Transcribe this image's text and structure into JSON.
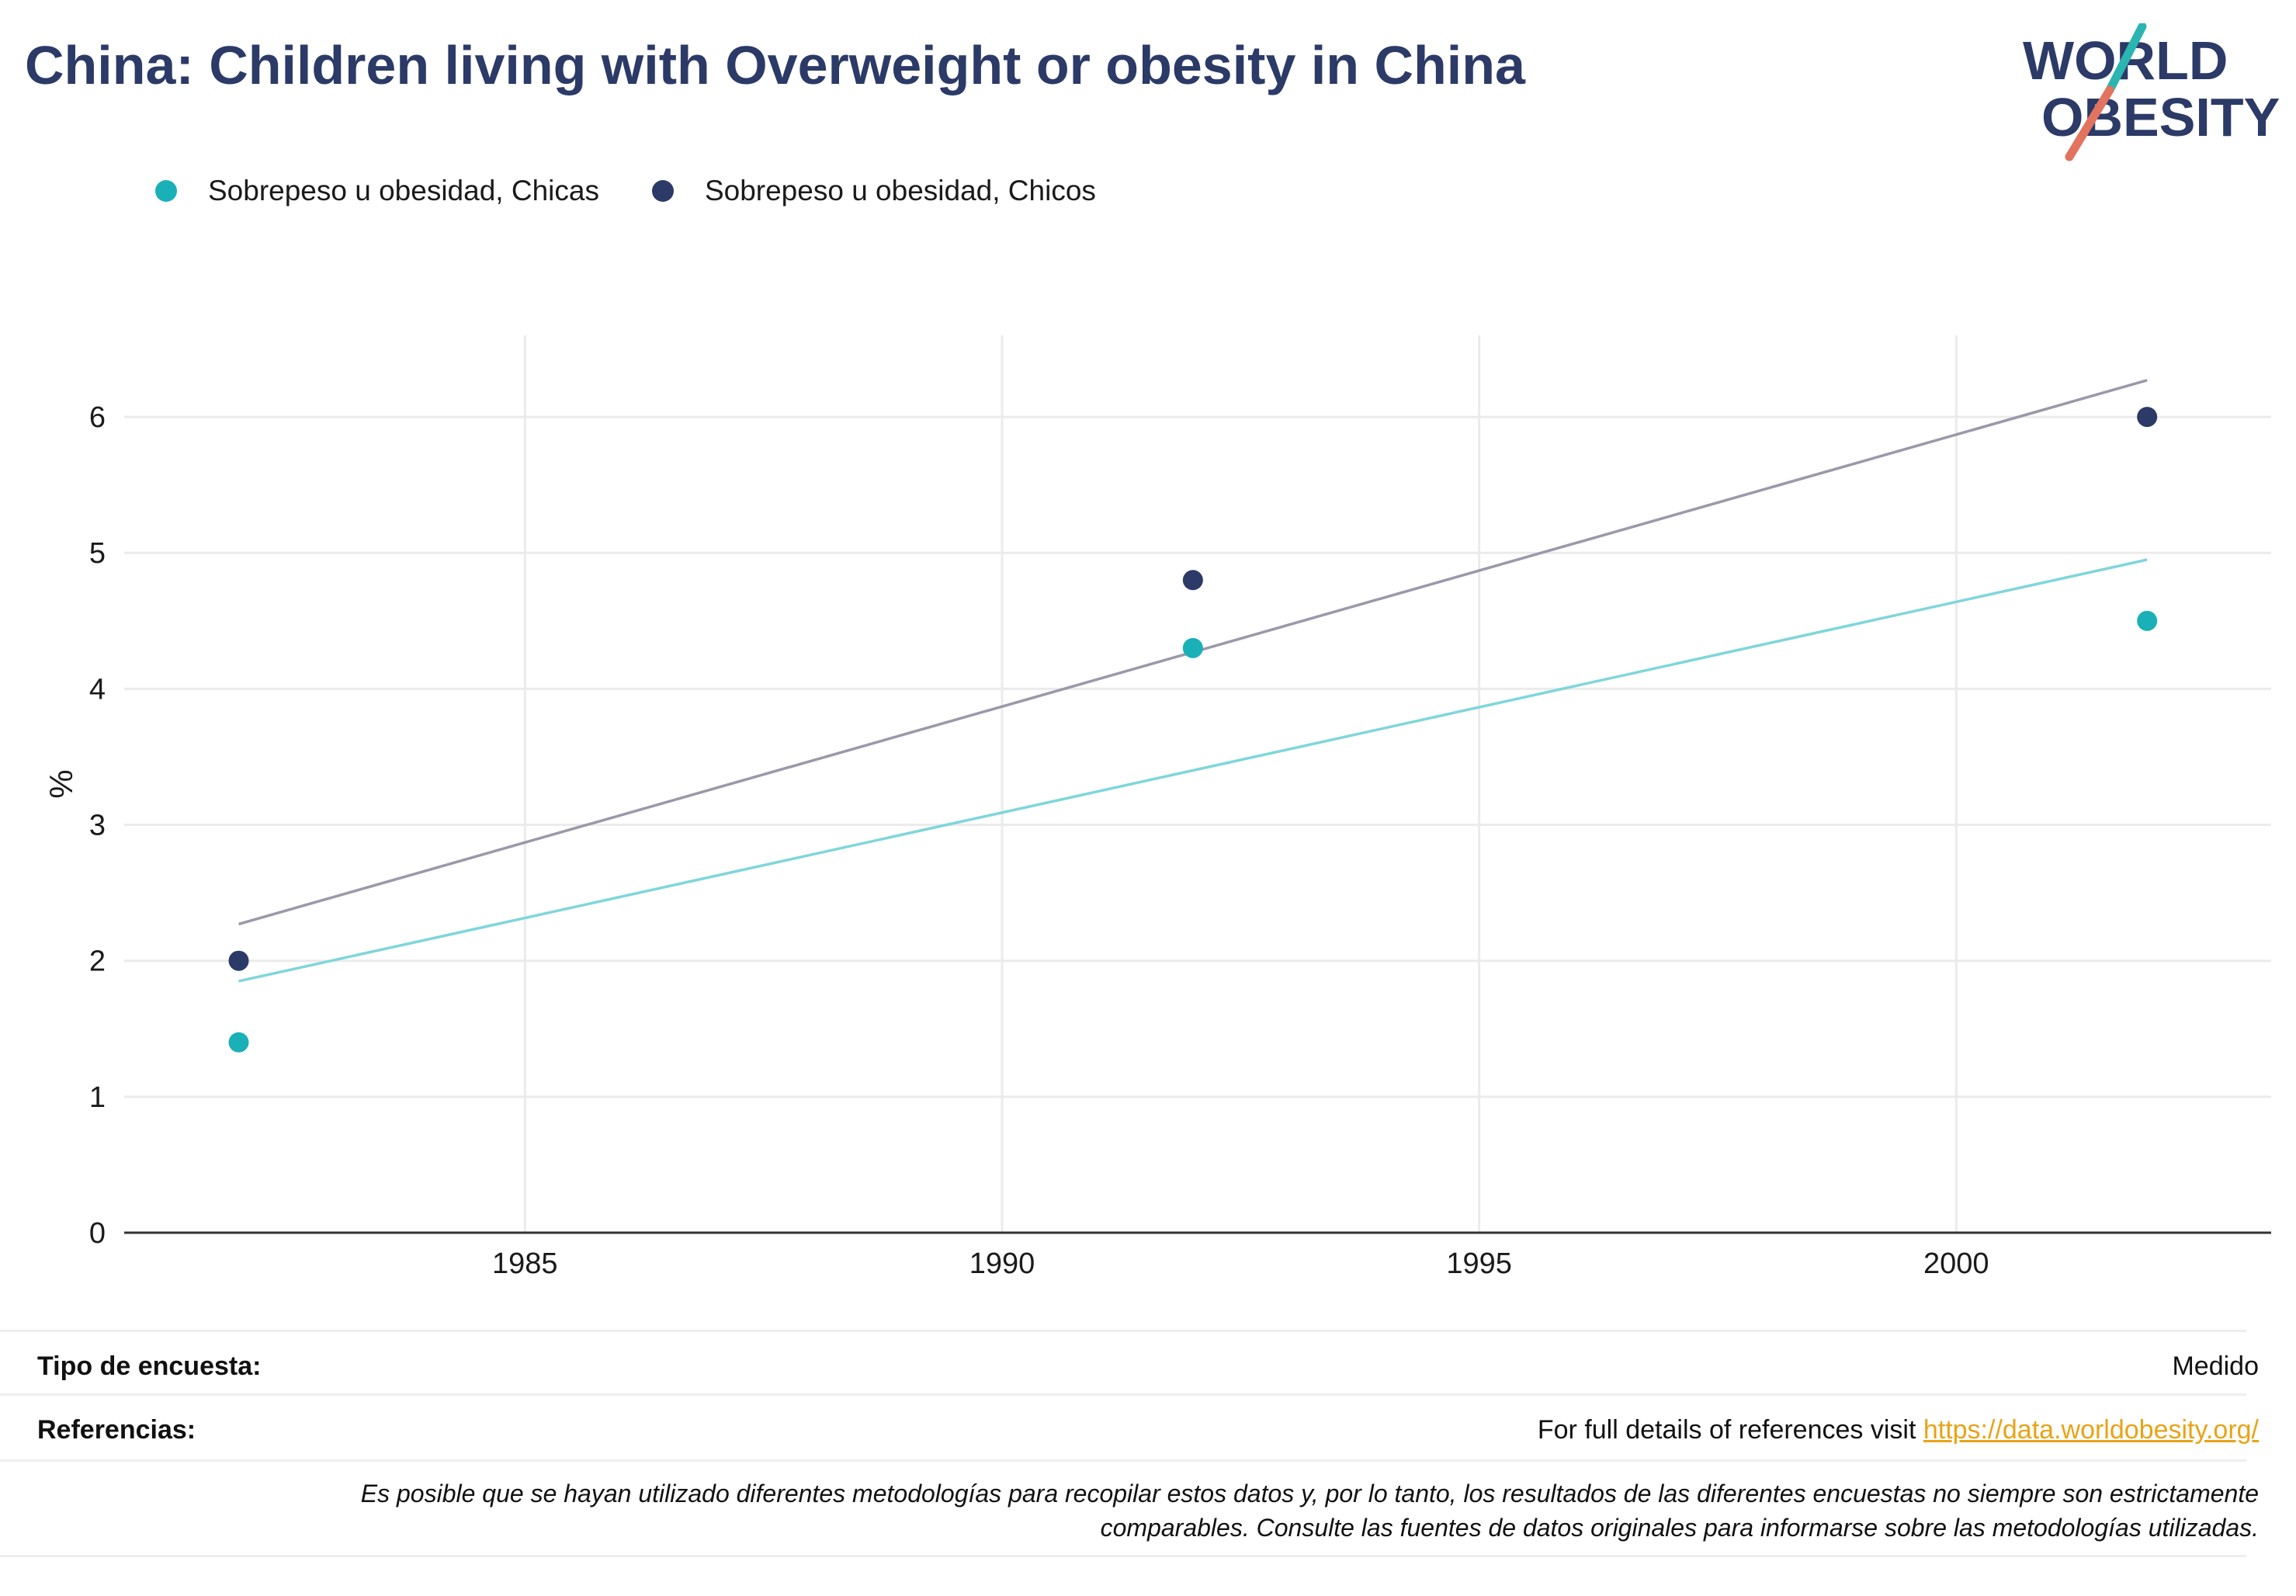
{
  "title": "China: Children living with Overweight or obesity in China",
  "logo": {
    "line1": "WORLD",
    "line2": "OBESITY"
  },
  "colors": {
    "title": "#2b3a67",
    "girls": "#1ab0b8",
    "boys": "#2b3a67",
    "girls_trend": "#7fd6da",
    "boys_trend": "#9a98aa",
    "grid": "#ebebeb",
    "axis": "#333333",
    "link": "#e8a317",
    "logo_teal": "#2bb5b0",
    "logo_coral": "#e2735f"
  },
  "legend": [
    {
      "label": "Sobrepeso u obesidad, Chicas",
      "color_key": "girls"
    },
    {
      "label": "Sobrepeso u obesidad, Chicos",
      "color_key": "boys"
    }
  ],
  "chart_data": {
    "type": "scatter",
    "title": "China: Children living with Overweight or obesity in China",
    "xlabel": "",
    "ylabel": "%",
    "xlim": [
      1980.8,
      2003.3
    ],
    "ylim": [
      0,
      6.6
    ],
    "xticks": [
      1985,
      1990,
      1995,
      2000
    ],
    "yticks": [
      0,
      1,
      2,
      3,
      4,
      5,
      6
    ],
    "grid": true,
    "legend_position": "top-left",
    "series": [
      {
        "name": "Sobrepeso u obesidad, Chicas",
        "x": [
          1982,
          1992,
          2002
        ],
        "y": [
          1.4,
          4.3,
          4.5
        ],
        "trend": {
          "x": [
            1982,
            2002
          ],
          "y": [
            1.85,
            4.95
          ]
        }
      },
      {
        "name": "Sobrepeso u obesidad, Chicos",
        "x": [
          1982,
          1992,
          2002
        ],
        "y": [
          2.0,
          4.8,
          6.0
        ],
        "trend": {
          "x": [
            1982,
            2002
          ],
          "y": [
            2.27,
            6.27
          ]
        }
      }
    ]
  },
  "footer": {
    "survey_label": "Tipo de encuesta:",
    "survey_value": "Medido",
    "refs_label": "Referencias:",
    "refs_text": "For full details of references visit ",
    "refs_link": "https://data.worldobesity.org/",
    "note_line1": "Es posible que se hayan utilizado diferentes metodologías para recopilar estos datos y, por lo tanto, los resultados de las diferentes encuestas no siempre son estrictamente",
    "note_line2": "comparables. Consulte las fuentes de datos originales para informarse sobre las metodologías utilizadas."
  }
}
